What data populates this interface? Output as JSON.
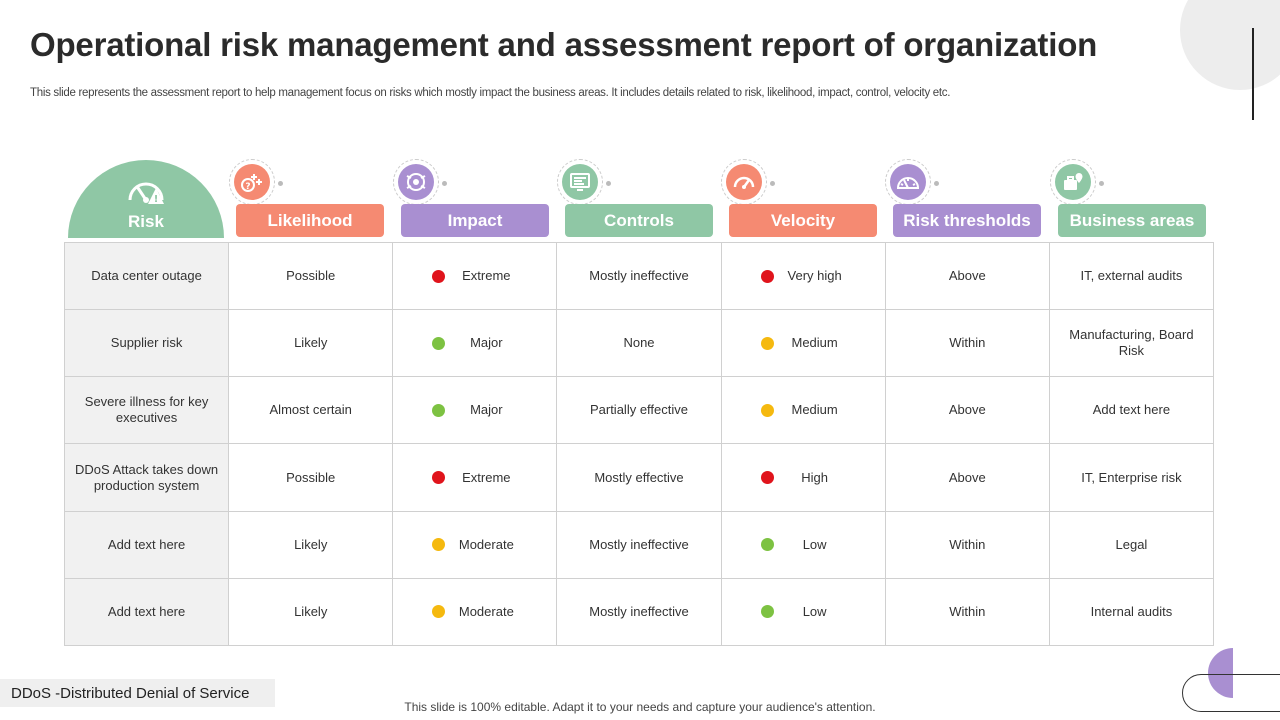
{
  "title": "Operational risk management and assessment report of organization",
  "subtitle": "This slide represents the assessment report to help management focus on risks which mostly impact the business areas. It includes details related to risk, likelihood, impact, control, velocity etc.",
  "risk_header": "Risk",
  "headers": [
    {
      "label": "Likelihood",
      "icon": "dice-risk-icon",
      "color": "#f58a72"
    },
    {
      "label": "Impact",
      "icon": "target-impact-icon",
      "color": "#a98fd1"
    },
    {
      "label": "Controls",
      "icon": "control-panel-icon",
      "color": "#8fc7a5"
    },
    {
      "label": "Velocity",
      "icon": "speedometer-icon",
      "color": "#f58a72"
    },
    {
      "label": "Risk thresholds",
      "icon": "gauge-threshold-icon",
      "color": "#a98fd1"
    },
    {
      "label": "Business areas",
      "icon": "briefcase-location-icon",
      "color": "#8fc7a5"
    }
  ],
  "status_colors": {
    "red": "#e0141c",
    "green": "#7dc242",
    "yellow": "#f5b90f"
  },
  "rows": [
    {
      "risk": "Data center outage",
      "likelihood": "Possible",
      "impact": "Extreme",
      "impact_color": "red",
      "controls": "Mostly ineffective",
      "velocity": "Very high",
      "velocity_color": "red",
      "threshold": "Above",
      "business": "IT,  external audits"
    },
    {
      "risk": "Supplier risk",
      "likelihood": "Likely",
      "impact": "Major",
      "impact_color": "green",
      "controls": "None",
      "velocity": "Medium",
      "velocity_color": "yellow",
      "threshold": "Within",
      "business": "Manufacturing, Board Risk"
    },
    {
      "risk": "Severe  illness for key executives",
      "likelihood": "Almost certain",
      "impact": "Major",
      "impact_color": "green",
      "controls": "Partially effective",
      "velocity": "Medium",
      "velocity_color": "yellow",
      "threshold": "Above",
      "business": "Add text here"
    },
    {
      "risk": "DDoS Attack takes down production system",
      "likelihood": "Possible",
      "impact": "Extreme",
      "impact_color": "red",
      "controls": "Mostly effective",
      "velocity": "High",
      "velocity_color": "red",
      "threshold": "Above",
      "business": "IT, Enterprise risk"
    },
    {
      "risk": "Add text here",
      "likelihood": "Likely",
      "impact": "Moderate",
      "impact_color": "yellow",
      "controls": "Mostly ineffective",
      "velocity": "Low",
      "velocity_color": "green",
      "threshold": "Within",
      "business": "Legal"
    },
    {
      "risk": "Add text here",
      "likelihood": "Likely",
      "impact": "Moderate",
      "impact_color": "yellow",
      "controls": "Mostly ineffective",
      "velocity": "Low",
      "velocity_color": "green",
      "threshold": "Within",
      "business": "Internal audits"
    }
  ],
  "footnote": "DDoS -Distributed Denial of Service",
  "footer": "This slide is 100% editable. Adapt it to your needs and capture your audience's attention."
}
